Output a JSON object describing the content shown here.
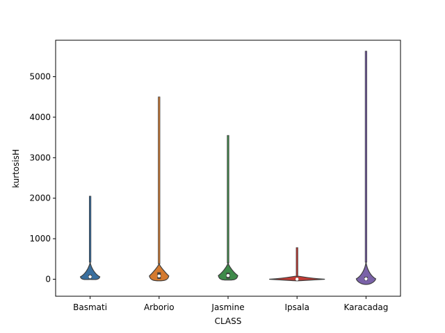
{
  "chart_data": {
    "type": "violin",
    "xlabel": "CLASS",
    "ylabel": "kurtosisH",
    "ylim": [
      -420,
      5900
    ],
    "yticks": [
      0,
      1000,
      2000,
      3000,
      4000,
      5000
    ],
    "ytick_labels": [
      "0",
      "1000",
      "2000",
      "3000",
      "4000",
      "5000"
    ],
    "grid": false,
    "categories": [
      "Basmati",
      "Arborio",
      "Jasmine",
      "Ipsala",
      "Karacadag"
    ],
    "series": [
      {
        "category": "Basmati",
        "color": "#3a6f9e",
        "min": -5,
        "q1": 20,
        "median": 60,
        "q3": 110,
        "whisker_high": 420,
        "max": 2050
      },
      {
        "category": "Arborio",
        "color": "#d47a2f",
        "min": -40,
        "q1": 10,
        "median": 80,
        "q3": 170,
        "whisker_high": 380,
        "max": 4500
      },
      {
        "category": "Jasmine",
        "color": "#3f8a4a",
        "min": -20,
        "q1": 15,
        "median": 90,
        "q3": 160,
        "whisker_high": 400,
        "max": 3550
      },
      {
        "category": "Ipsala",
        "color": "#c23b34",
        "min": -40,
        "q1": -10,
        "median": 0,
        "q3": 15,
        "whisker_high": 60,
        "max": 780
      },
      {
        "category": "Karacadag",
        "color": "#7a62a8",
        "min": -130,
        "q1": -30,
        "median": 10,
        "q3": 60,
        "whisker_high": 420,
        "max": 5630
      }
    ]
  }
}
